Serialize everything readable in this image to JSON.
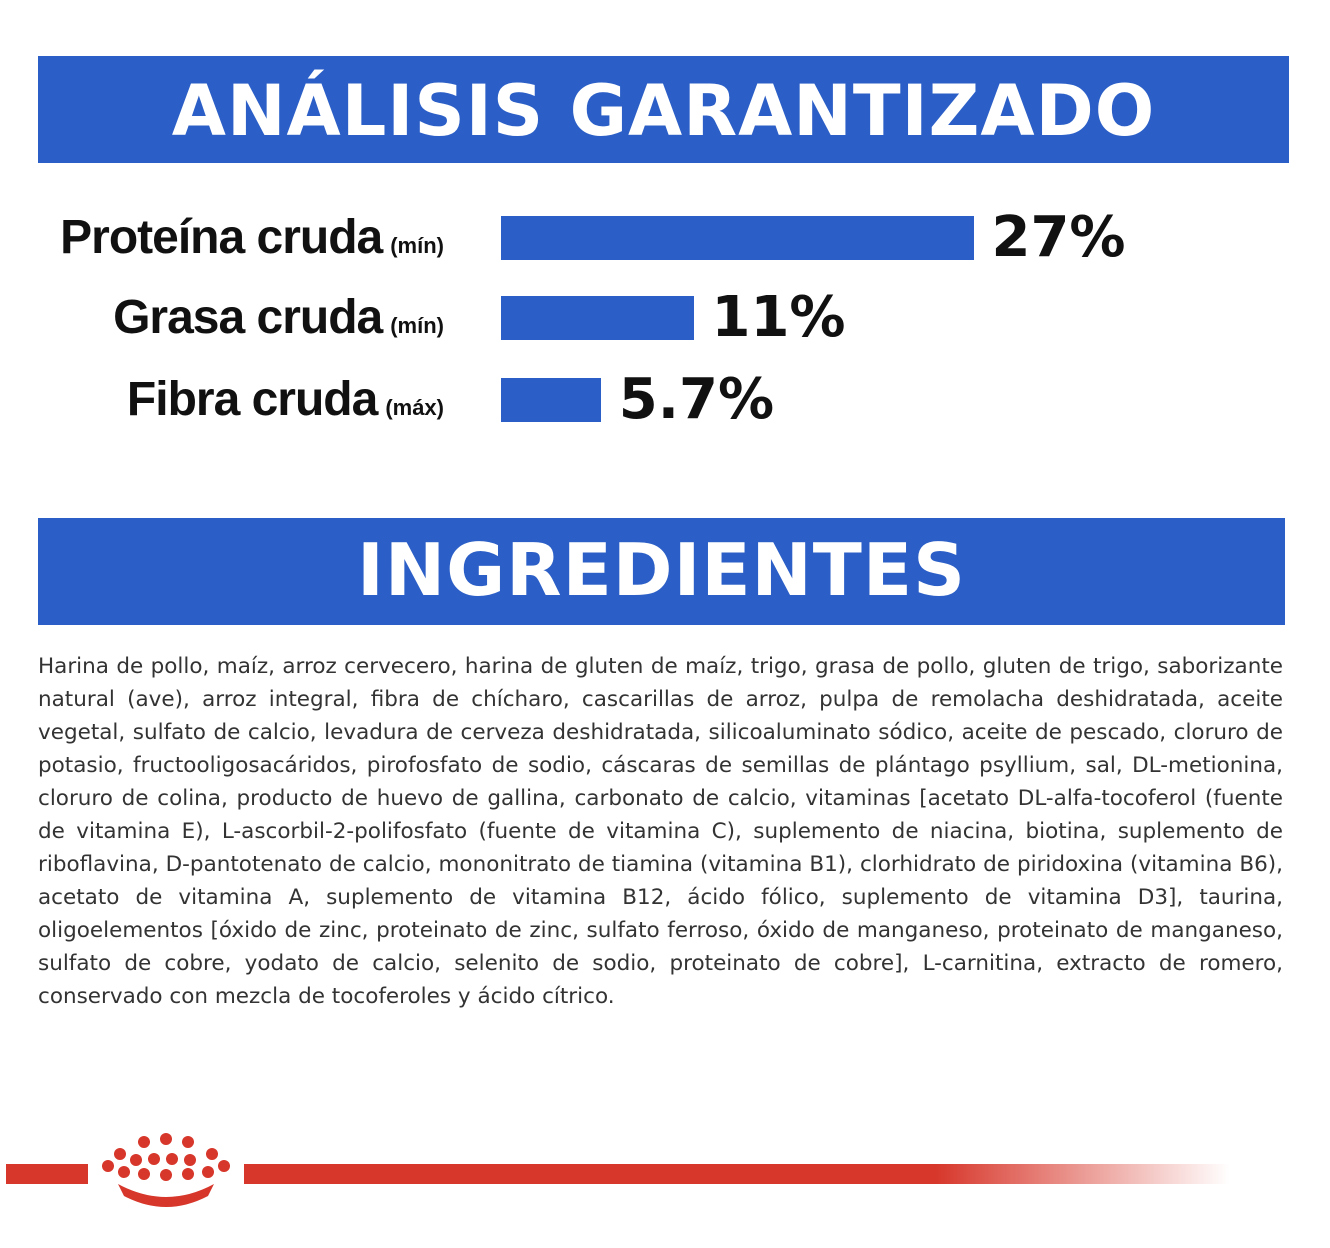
{
  "headings": {
    "analysis": "ANÁLISIS GARANTIZADO",
    "ingredients": "INGREDIENTES"
  },
  "chart_data": {
    "type": "bar",
    "orientation": "horizontal",
    "categories": [
      "Proteína cruda",
      "Grasa cruda",
      "Fibra cruda"
    ],
    "qualifiers": [
      "(mín)",
      "(mín)",
      "(máx)"
    ],
    "values": [
      27,
      11,
      5.7
    ],
    "value_labels": [
      "27%",
      "11%",
      "5.7%"
    ],
    "unit": "%",
    "bar_color": "#2b5fc7",
    "grid": false,
    "legend": "none"
  },
  "ingredients_text": "Harina de pollo, maíz, arroz cervecero, harina de gluten de maíz, trigo, grasa de pollo, gluten de trigo, saborizante natural (ave), arroz integral, fibra de chícharo, cascarillas de arroz, pulpa de remolacha deshidratada, aceite vegetal, sulfato de calcio, levadura de cerveza deshidratada, silicoaluminato sódico, aceite de pescado, cloruro de potasio, fructooligosacáridos, pirofosfato de sodio, cáscaras de semillas de plántago psyllium, sal, DL-metionina, cloruro de colina, producto de huevo de gallina, carbonato de calcio, vitaminas [acetato DL-alfa-tocoferol (fuente de vitamina E), L-ascorbil-2-polifosfato (fuente de vitamina C), suplemento de niacina, biotina, suplemento de riboflavina, D-pantotenato de calcio, mononitrato de tiamina (vitamina B1), clorhidrato de piridoxina (vitamina B6), acetato de vitamina A, suplemento de vitamina B12, ácido fólico, suplemento de vitamina D3], taurina, oligoelementos [óxido de zinc, proteinato de zinc, sulfato ferroso, óxido de manganeso, proteinato de manganeso, sulfato de cobre, yodato de calcio, selenito de sodio, proteinato de cobre], L-carnitina, extracto de romero, conservado con mezcla de tocoferoles y ácido cítrico.",
  "footer": {
    "logo_icon": "crown-icon",
    "brand_color": "#d7362a"
  }
}
